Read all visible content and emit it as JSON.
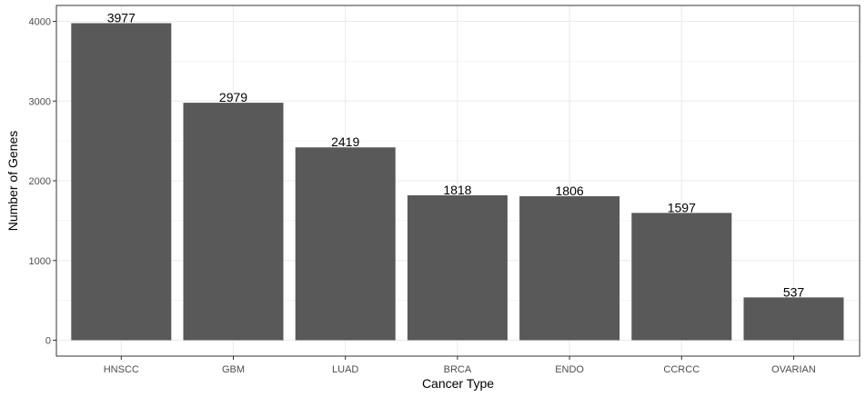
{
  "chart_data": {
    "type": "bar",
    "categories": [
      "HNSCC",
      "GBM",
      "LUAD",
      "BRCA",
      "ENDO",
      "CCRCC",
      "OVARIAN"
    ],
    "values": [
      3977,
      2979,
      2419,
      1818,
      1806,
      1597,
      537
    ],
    "data_labels": [
      "3977",
      "2979",
      "2419",
      "1818",
      "1806",
      "1597",
      "537"
    ],
    "xlabel": "Cancer Type",
    "ylabel": "Number of Genes",
    "ylim": [
      0,
      4000
    ],
    "yticks": [
      0,
      1000,
      2000,
      3000,
      4000
    ],
    "ytick_labels": [
      "0",
      "1000",
      "2000",
      "3000",
      "4000"
    ],
    "grid": true,
    "bar_color": "#595959",
    "grid_color": "#ebebeb",
    "panel_border_color": "#333333"
  }
}
